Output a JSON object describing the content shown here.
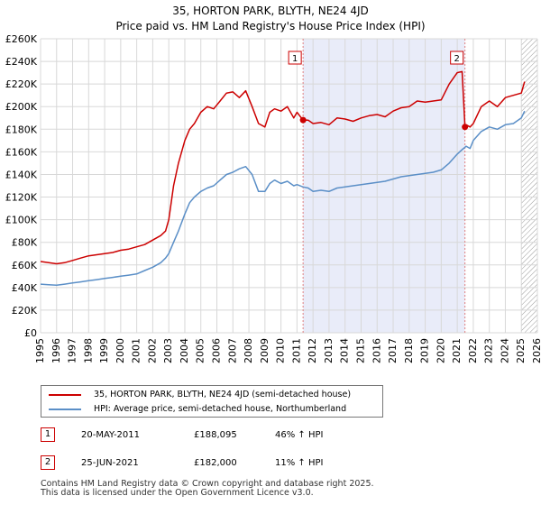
{
  "chart_data": {
    "type": "line",
    "title": "35, HORTON PARK, BLYTH, NE24 4JD",
    "subtitle": "Price paid vs. HM Land Registry's House Price Index (HPI)",
    "xlim": [
      1995,
      2026
    ],
    "ylim": [
      0,
      260000
    ],
    "x_ticks": [
      1995,
      1996,
      1997,
      1998,
      1999,
      2000,
      2001,
      2002,
      2003,
      2004,
      2005,
      2006,
      2007,
      2008,
      2009,
      2010,
      2011,
      2012,
      2013,
      2014,
      2015,
      2016,
      2017,
      2018,
      2019,
      2020,
      2021,
      2022,
      2023,
      2024,
      2025,
      2026
    ],
    "x_tick_labels": [
      "1995",
      "1996",
      "1997",
      "1998",
      "1999",
      "2000",
      "2001",
      "2002",
      "2003",
      "2004",
      "2005",
      "2006",
      "2007",
      "2008",
      "2009",
      "2010",
      "2011",
      "2012",
      "2013",
      "2014",
      "2015",
      "2016",
      "2017",
      "2018",
      "2019",
      "2020",
      "2021",
      "2022",
      "2023",
      "2024",
      "2025",
      "2026"
    ],
    "y_ticks": [
      0,
      20000,
      40000,
      60000,
      80000,
      100000,
      120000,
      140000,
      160000,
      180000,
      200000,
      220000,
      240000,
      260000
    ],
    "y_tick_labels": [
      "£0",
      "£20K",
      "£40K",
      "£60K",
      "£80K",
      "£100K",
      "£120K",
      "£140K",
      "£160K",
      "£180K",
      "£200K",
      "£220K",
      "£240K",
      "£260K"
    ],
    "grid": true,
    "shaded_region": [
      2011.38,
      2021.48
    ],
    "hatched_region": [
      2025.0,
      2026
    ],
    "series": [
      {
        "name": "35, HORTON PARK, BLYTH, NE24 4JD (semi-detached house)",
        "color": "#cc0000",
        "x": [
          1995.0,
          1995.5,
          1996.0,
          1996.5,
          1997.0,
          1997.5,
          1998.0,
          1998.5,
          1999.0,
          1999.5,
          2000.0,
          2000.5,
          2001.0,
          2001.5,
          2002.0,
          2002.5,
          2002.8,
          2003.0,
          2003.3,
          2003.6,
          2004.0,
          2004.3,
          2004.6,
          2005.0,
          2005.4,
          2005.8,
          2006.2,
          2006.6,
          2007.0,
          2007.4,
          2007.8,
          2008.2,
          2008.6,
          2009.0,
          2009.3,
          2009.6,
          2010.0,
          2010.4,
          2010.8,
          2011.0,
          2011.38,
          2011.7,
          2012.0,
          2012.5,
          2013.0,
          2013.5,
          2014.0,
          2014.5,
          2015.0,
          2015.5,
          2016.0,
          2016.5,
          2017.0,
          2017.5,
          2018.0,
          2018.5,
          2019.0,
          2019.5,
          2020.0,
          2020.5,
          2021.0,
          2021.3,
          2021.48,
          2021.55,
          2021.8,
          2022.0,
          2022.5,
          2023.0,
          2023.5,
          2024.0,
          2024.5,
          2025.0,
          2025.2
        ],
        "values": [
          63000,
          62000,
          61000,
          62000,
          64000,
          66000,
          68000,
          69000,
          70000,
          71000,
          73000,
          74000,
          76000,
          78000,
          82000,
          86000,
          90000,
          100000,
          130000,
          150000,
          170000,
          180000,
          185000,
          195000,
          200000,
          198000,
          205000,
          212000,
          213000,
          208000,
          214000,
          200000,
          185000,
          182000,
          195000,
          198000,
          196000,
          200000,
          190000,
          195000,
          188095,
          188000,
          185000,
          186000,
          184000,
          190000,
          189000,
          187000,
          190000,
          192000,
          193000,
          191000,
          196000,
          199000,
          200000,
          205000,
          204000,
          205000,
          206000,
          220000,
          230000,
          231000,
          182000,
          184000,
          182000,
          185000,
          200000,
          205000,
          200000,
          208000,
          210000,
          212000,
          222000
        ]
      },
      {
        "name": "HPI: Average price, semi-detached house, Northumberland",
        "color": "#5b8fc7",
        "x": [
          1995.0,
          1995.5,
          1996.0,
          1996.5,
          1997.0,
          1997.5,
          1998.0,
          1998.5,
          1999.0,
          1999.5,
          2000.0,
          2000.5,
          2001.0,
          2001.5,
          2002.0,
          2002.5,
          2002.8,
          2003.0,
          2003.3,
          2003.6,
          2004.0,
          2004.3,
          2004.6,
          2005.0,
          2005.4,
          2005.8,
          2006.2,
          2006.6,
          2007.0,
          2007.4,
          2007.8,
          2008.2,
          2008.6,
          2009.0,
          2009.3,
          2009.6,
          2010.0,
          2010.4,
          2010.8,
          2011.0,
          2011.38,
          2011.7,
          2012.0,
          2012.5,
          2013.0,
          2013.5,
          2014.0,
          2014.5,
          2015.0,
          2015.5,
          2016.0,
          2016.5,
          2017.0,
          2017.5,
          2018.0,
          2018.5,
          2019.0,
          2019.5,
          2020.0,
          2020.5,
          2021.0,
          2021.3,
          2021.48,
          2021.55,
          2021.8,
          2022.0,
          2022.5,
          2023.0,
          2023.5,
          2024.0,
          2024.5,
          2025.0,
          2025.2
        ],
        "values": [
          43000,
          42500,
          42000,
          43000,
          44000,
          45000,
          46000,
          47000,
          48000,
          49000,
          50000,
          51000,
          52000,
          55000,
          58000,
          62000,
          66000,
          70000,
          80000,
          90000,
          105000,
          115000,
          120000,
          125000,
          128000,
          130000,
          135000,
          140000,
          142000,
          145000,
          147000,
          140000,
          125000,
          125000,
          132000,
          135000,
          132000,
          134000,
          130000,
          131000,
          129000,
          128000,
          125000,
          126000,
          125000,
          128000,
          129000,
          130000,
          131000,
          132000,
          133000,
          134000,
          136000,
          138000,
          139000,
          140000,
          141000,
          142000,
          144000,
          150000,
          158000,
          162000,
          164000,
          165000,
          163000,
          170000,
          178000,
          182000,
          180000,
          184000,
          185000,
          190000,
          196000
        ]
      }
    ],
    "markers": [
      {
        "label": "1",
        "x": 2011.38,
        "value": 188095
      },
      {
        "label": "2",
        "x": 2021.48,
        "value": 182000
      }
    ]
  },
  "legend": [
    {
      "label": "35, HORTON PARK, BLYTH, NE24 4JD (semi-detached house)",
      "color": "#cc0000"
    },
    {
      "label": "HPI: Average price, semi-detached house, Northumberland",
      "color": "#5b8fc7"
    }
  ],
  "transactions": [
    {
      "num": "1",
      "date": "20-MAY-2011",
      "price": "£188,095",
      "hpi": "46% ↑ HPI"
    },
    {
      "num": "2",
      "date": "25-JUN-2021",
      "price": "£182,000",
      "hpi": "11% ↑ HPI"
    }
  ],
  "footer": {
    "line1": "Contains HM Land Registry data © Crown copyright and database right 2025.",
    "line2": "This data is licensed under the Open Government Licence v3.0."
  }
}
